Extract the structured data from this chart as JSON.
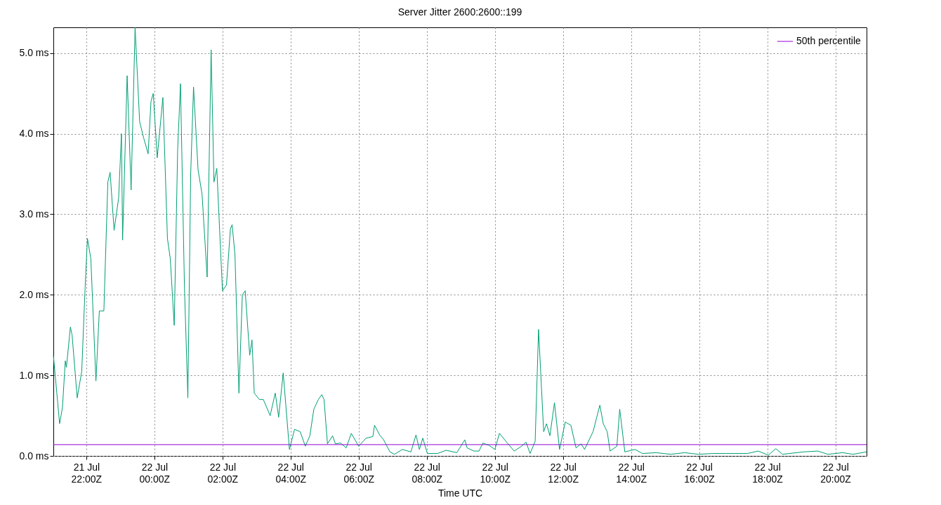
{
  "chart_data": {
    "type": "line",
    "title": "Server Jitter 2600:2600::199",
    "xlabel": "Time UTC",
    "xlim": [
      "--07-21T21:02",
      "--07-22T20:55"
    ],
    "xticks": [
      {
        "value": "--07-21T22:00",
        "label": "21 Jul\n22:00Z"
      },
      {
        "value": "--07-22T00:00",
        "label": "22 Jul\n00:00Z"
      },
      {
        "value": "--07-22T02:00",
        "label": "22 Jul\n02:00Z"
      },
      {
        "value": "--07-22T04:00",
        "label": "22 Jul\n04:00Z"
      },
      {
        "value": "--07-22T06:00",
        "label": "22 Jul\n06:00Z"
      },
      {
        "value": "--07-22T08:00",
        "label": "22 Jul\n08:00Z"
      },
      {
        "value": "--07-22T10:00",
        "label": "22 Jul\n10:00Z"
      },
      {
        "value": "--07-22T12:00",
        "label": "22 Jul\n12:00Z"
      },
      {
        "value": "--07-22T14:00",
        "label": "22 Jul\n14:00Z"
      },
      {
        "value": "--07-22T16:00",
        "label": "22 Jul\n16:00Z"
      },
      {
        "value": "--07-22T18:00",
        "label": "22 Jul\n18:00Z"
      },
      {
        "value": "--07-22T20:00",
        "label": "22 Jul\n20:00Z"
      }
    ],
    "ylim": [
      0,
      5.32
    ],
    "yticks": [
      {
        "value": 0,
        "label": "0.0 ms"
      },
      {
        "value": 1,
        "label": "1.0 ms"
      },
      {
        "value": 2,
        "label": "2.0 ms"
      },
      {
        "value": 3,
        "label": "3.0 ms"
      },
      {
        "value": 4,
        "label": "4.0 ms"
      },
      {
        "value": 5,
        "label": "5.0 ms"
      }
    ],
    "grid": true,
    "legend": "top right",
    "ref_lines": [
      {
        "axis": "y",
        "value": 0.14,
        "label": "50th percentile",
        "color": "#9400d3"
      }
    ],
    "series": [
      {
        "color": "#009e73",
        "x": [
          "--07-21T21:02",
          "--07-21T21:13",
          "--07-21T21:18",
          "--07-21T21:23",
          "--07-21T21:25",
          "--07-21T21:32",
          "--07-21T21:35",
          "--07-21T21:44",
          "--07-21T21:52",
          "--07-21T21:58",
          "--07-21T22:02",
          "--07-21T22:08",
          "--07-21T22:17",
          "--07-21T22:23",
          "--07-21T22:31",
          "--07-21T22:38",
          "--07-21T22:42",
          "--07-21T22:49",
          "--07-21T22:57",
          "--07-21T23:02",
          "--07-21T23:04",
          "--07-21T23:12",
          "--07-21T23:19",
          "--07-21T23:26",
          "--07-21T23:34",
          "--07-21T23:41",
          "--07-21T23:49",
          "--07-21T23:54",
          "--07-21T23:58",
          "--07-22T00:05",
          "--07-22T00:15",
          "--07-22T00:23",
          "--07-22T00:28",
          "--07-22T00:35",
          "--07-22T00:41",
          "--07-22T00:46",
          "--07-22T00:53",
          "--07-22T00:59",
          "--07-22T01:04",
          "--07-22T01:09",
          "--07-22T01:17",
          "--07-22T01:24",
          "--07-22T01:33",
          "--07-22T01:40",
          "--07-22T01:45",
          "--07-22T01:50",
          "--07-22T01:55",
          "--07-22T02:00",
          "--07-22T02:07",
          "--07-22T02:14",
          "--07-22T02:17",
          "--07-22T02:22",
          "--07-22T02:29",
          "--07-22T02:35",
          "--07-22T02:40",
          "--07-22T02:48",
          "--07-22T02:52",
          "--07-22T02:56",
          "--07-22T03:05",
          "--07-22T03:12",
          "--07-22T03:24",
          "--07-22T03:33",
          "--07-22T03:39",
          "--07-22T03:47",
          "--07-22T03:58",
          "--07-22T04:07",
          "--07-22T04:17",
          "--07-22T04:26",
          "--07-22T04:34",
          "--07-22T04:41",
          "--07-22T04:49",
          "--07-22T04:55",
          "--07-22T04:59",
          "--07-22T05:05",
          "--07-22T05:14",
          "--07-22T05:19",
          "--07-22T05:28",
          "--07-22T05:38",
          "--07-22T05:47",
          "--07-22T06:00",
          "--07-22T06:13",
          "--07-22T06:25",
          "--07-22T06:28",
          "--07-22T06:37",
          "--07-22T06:44",
          "--07-22T06:55",
          "--07-22T07:03",
          "--07-22T07:17",
          "--07-22T07:32",
          "--07-22T07:41",
          "--07-22T07:47",
          "--07-22T07:53",
          "--07-22T08:01",
          "--07-22T08:19",
          "--07-22T08:34",
          "--07-22T08:53",
          "--07-22T09:07",
          "--07-22T09:11",
          "--07-22T09:23",
          "--07-22T09:32",
          "--07-22T09:39",
          "--07-22T09:50",
          "--07-22T10:00",
          "--07-22T10:08",
          "--07-22T10:22",
          "--07-22T10:34",
          "--07-22T10:47",
          "--07-22T10:55",
          "--07-22T11:02",
          "--07-22T11:11",
          "--07-22T11:17",
          "--07-22T11:26",
          "--07-22T11:31",
          "--07-22T11:37",
          "--07-22T11:45",
          "--07-22T11:54",
          "--07-22T12:04",
          "--07-22T12:14",
          "--07-22T12:23",
          "--07-22T12:32",
          "--07-22T12:38",
          "--07-22T12:53",
          "--07-22T13:05",
          "--07-22T13:11",
          "--07-22T13:18",
          "--07-22T13:23",
          "--07-22T13:35",
          "--07-22T13:40",
          "--07-22T13:49",
          "--07-22T14:07",
          "--07-22T14:20",
          "--07-22T14:44",
          "--07-22T15:10",
          "--07-22T15:34",
          "--07-22T15:59",
          "--07-22T16:23",
          "--07-22T16:48",
          "--07-22T17:25",
          "--07-22T17:44",
          "--07-22T18:02",
          "--07-22T18:15",
          "--07-22T18:27",
          "--07-22T19:04",
          "--07-22T19:29",
          "--07-22T19:47",
          "--07-22T20:13",
          "--07-22T20:31",
          "--07-22T20:55"
        ],
        "values": [
          1.25,
          0.4,
          0.6,
          1.18,
          1.1,
          1.6,
          1.5,
          0.72,
          1.05,
          2.1,
          2.7,
          2.45,
          0.93,
          1.8,
          1.8,
          3.4,
          3.52,
          2.8,
          3.2,
          4.0,
          2.68,
          4.72,
          3.3,
          5.32,
          4.15,
          3.95,
          3.75,
          4.4,
          4.5,
          3.7,
          4.45,
          2.7,
          2.45,
          1.62,
          3.8,
          4.62,
          2.1,
          0.72,
          3.5,
          4.58,
          3.55,
          3.25,
          2.22,
          5.04,
          3.4,
          3.57,
          2.8,
          2.05,
          2.12,
          2.82,
          2.87,
          2.5,
          0.78,
          2.0,
          2.05,
          1.25,
          1.44,
          0.78,
          0.7,
          0.7,
          0.5,
          0.78,
          0.48,
          1.03,
          0.08,
          0.33,
          0.3,
          0.12,
          0.25,
          0.58,
          0.7,
          0.76,
          0.7,
          0.15,
          0.25,
          0.15,
          0.16,
          0.1,
          0.28,
          0.12,
          0.22,
          0.24,
          0.38,
          0.26,
          0.2,
          0.05,
          0.02,
          0.08,
          0.05,
          0.26,
          0.08,
          0.22,
          0.03,
          0.03,
          0.07,
          0.04,
          0.2,
          0.1,
          0.06,
          0.06,
          0.16,
          0.13,
          0.08,
          0.28,
          0.16,
          0.06,
          0.12,
          0.17,
          0.03,
          0.18,
          1.57,
          0.3,
          0.4,
          0.25,
          0.66,
          0.08,
          0.42,
          0.38,
          0.1,
          0.15,
          0.08,
          0.3,
          0.63,
          0.4,
          0.3,
          0.06,
          0.12,
          0.58,
          0.05,
          0.08,
          0.03,
          0.04,
          0.02,
          0.04,
          0.02,
          0.03,
          0.03,
          0.03,
          0.06,
          0.01,
          0.09,
          0.02,
          0.05,
          0.06,
          0.02,
          0.04,
          0.02,
          0.05
        ]
      }
    ]
  }
}
